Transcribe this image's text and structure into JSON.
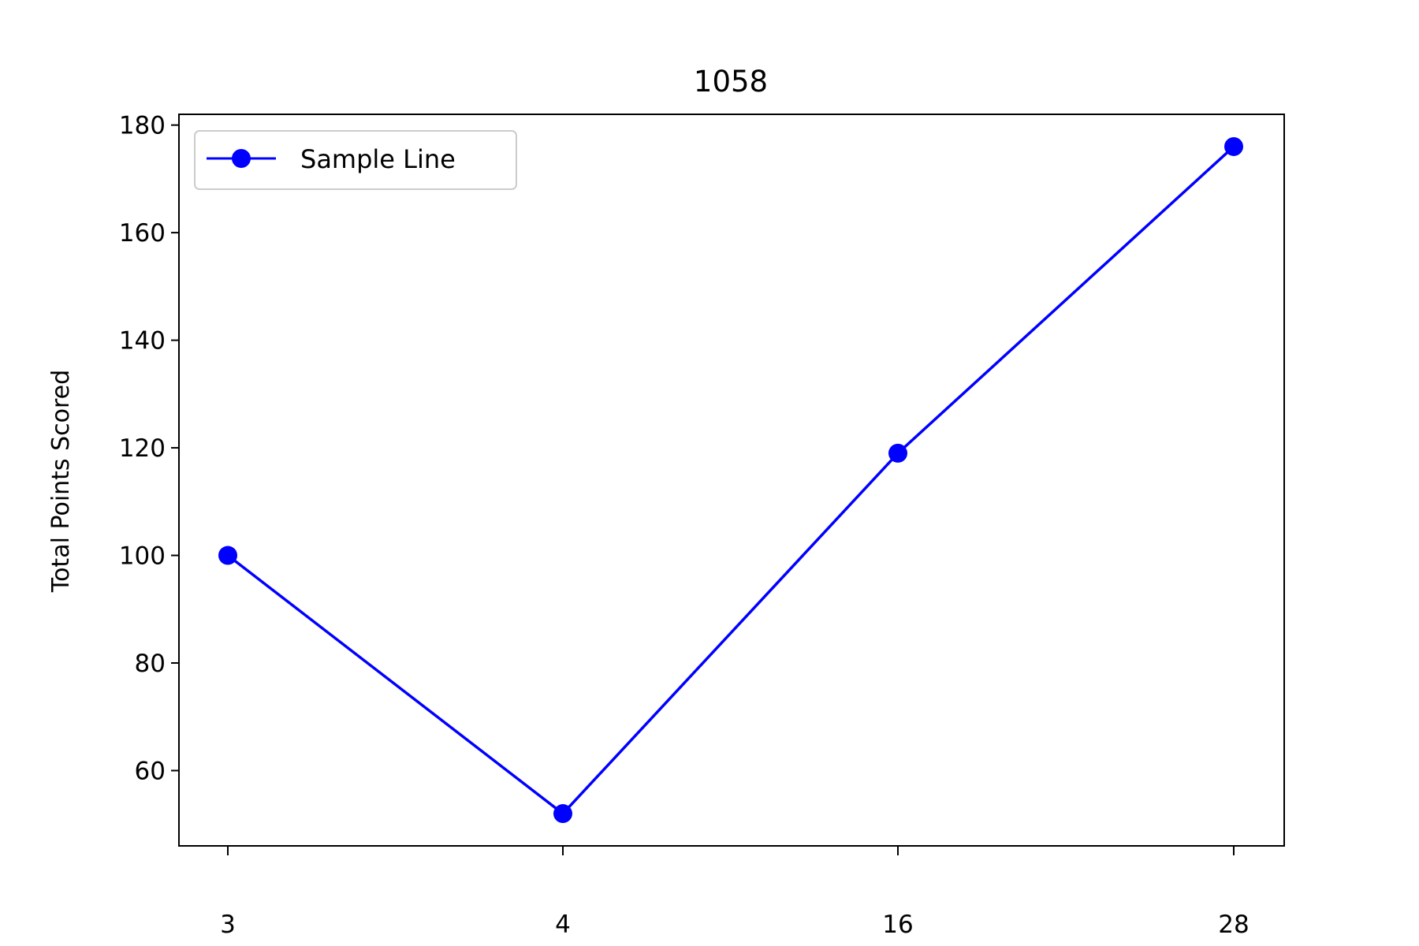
{
  "chart_data": {
    "type": "line",
    "title": "1058",
    "xlabel": "",
    "ylabel": "Total Points Scored",
    "categories": [
      "3",
      "4",
      "16",
      "28"
    ],
    "series": [
      {
        "name": "Sample Line",
        "values": [
          100,
          52,
          119,
          176
        ],
        "color": "#0000ff",
        "marker": "circle"
      }
    ],
    "ylim": [
      46,
      182
    ],
    "yticks": [
      60,
      80,
      100,
      120,
      140,
      160,
      180
    ],
    "grid": false,
    "legend_position": "top-left"
  }
}
